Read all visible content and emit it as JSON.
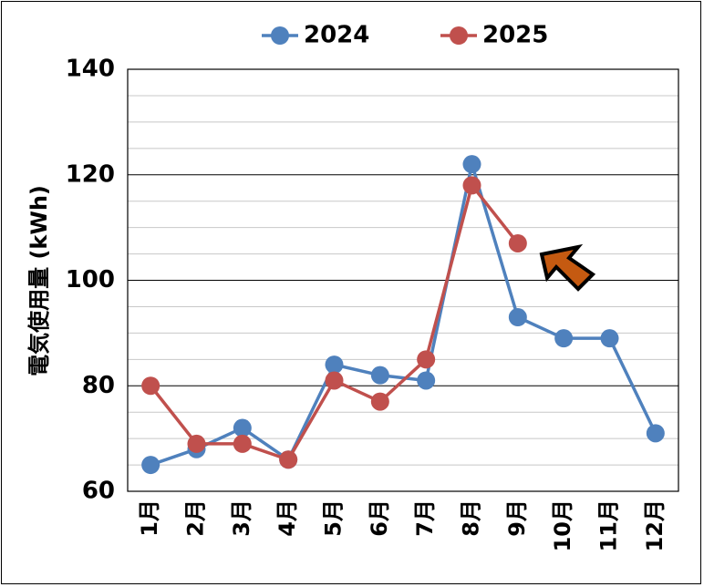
{
  "chart_data": {
    "type": "line",
    "categories": [
      "1月",
      "2月",
      "3月",
      "4月",
      "5月",
      "6月",
      "7月",
      "8月",
      "9月",
      "10月",
      "11月",
      "12月"
    ],
    "series": [
      {
        "name": "2024",
        "color": "#4f81bd",
        "values": [
          65,
          68,
          72,
          66,
          84,
          82,
          81,
          122,
          93,
          89,
          89,
          71
        ]
      },
      {
        "name": "2025",
        "color": "#c0504d",
        "values": [
          80,
          69,
          69,
          66,
          81,
          77,
          85,
          118,
          107,
          null,
          null,
          null
        ]
      }
    ],
    "ylabel": "電気使用量 (kWh)",
    "ylim": [
      60,
      140
    ],
    "yticks": [
      60,
      80,
      100,
      120,
      140
    ],
    "grid": true,
    "legend_position": "top",
    "annotation": {
      "type": "arrow",
      "color": "#c55a11",
      "points_to_category": "9月"
    }
  }
}
